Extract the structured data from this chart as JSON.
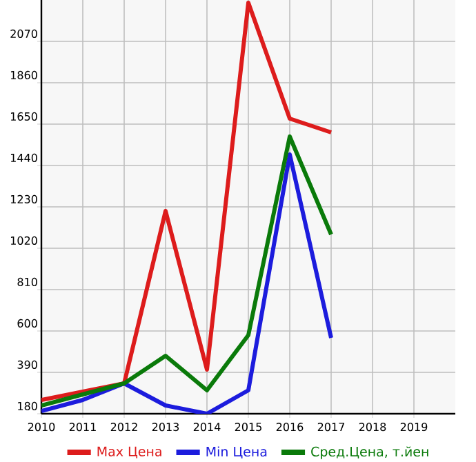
{
  "chart_data": {
    "type": "line",
    "x": [
      2010,
      2011,
      2012,
      2013,
      2014,
      2015,
      2016,
      2017
    ],
    "series": [
      {
        "name": "Max Цена",
        "color": "#dd1c1c",
        "values": [
          250,
          292,
          334,
          1209,
          404,
          2266,
          1678,
          1608
        ]
      },
      {
        "name": "Min Цена",
        "color": "#1c1cdd",
        "values": [
          194,
          250,
          334,
          222,
          180,
          299,
          1496,
          565
        ]
      },
      {
        "name": "Сред.Цена, т.йен",
        "color": "#0a7a0a",
        "values": [
          222,
          278,
          334,
          474,
          299,
          579,
          1587,
          1090
        ]
      }
    ],
    "xlim": [
      2010,
      2020
    ],
    "xticks": [
      2010,
      2011,
      2012,
      2013,
      2014,
      2015,
      2016,
      2017,
      2018,
      2019
    ],
    "ylim": [
      180,
      2280
    ],
    "yticks": [
      180,
      390,
      600,
      810,
      1020,
      1230,
      1440,
      1650,
      1860,
      2070
    ],
    "grid": true,
    "legend": "bottom",
    "marker": "none",
    "line_style": "solid"
  }
}
